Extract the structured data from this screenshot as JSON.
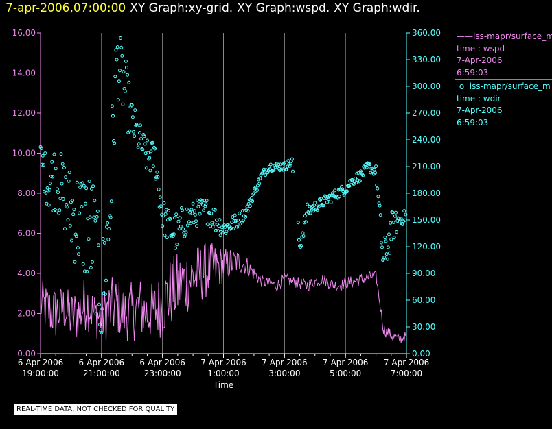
{
  "title": {
    "timestamp": "7-apr-2006,07:00:00",
    "parts": [
      "XY Graph:xy-grid.",
      "XY Graph:wspd.",
      "XY Graph:wdir."
    ]
  },
  "legend": {
    "wspd": {
      "name": "iss-mapr/surface_m",
      "var": "time : wspd",
      "date": "7-Apr-2006",
      "time": "6:59:03"
    },
    "wdir": {
      "name": "iss-mapr/surface_m",
      "var": "time : wdir",
      "date": "7-Apr-2006",
      "time": "6:59:03"
    }
  },
  "quality_note": "REAL-TIME DATA, NOT CHECKED FOR QUALITY",
  "colors": {
    "wspd": "#ee88ee",
    "wdir": "#55ffff",
    "grid": "#888888",
    "axis": "#ffffff"
  },
  "chart_data": {
    "type": "line+scatter",
    "xlabel": "Time",
    "x_unit": "hours since 6-Apr-2006 19:00:00",
    "xlim": [
      0,
      12.0
    ],
    "x_ticks": [
      {
        "x": 0,
        "date": "6-Apr-2006",
        "time": "19:00:00"
      },
      {
        "x": 2,
        "date": "6-Apr-2006",
        "time": "21:00:00"
      },
      {
        "x": 4,
        "date": "6-Apr-2006",
        "time": "23:00:00"
      },
      {
        "x": 6,
        "date": "7-Apr-2006",
        "time": "1:00:00"
      },
      {
        "x": 8,
        "date": "7-Apr-2006",
        "time": "3:00:00"
      },
      {
        "x": 10,
        "date": "7-Apr-2006",
        "time": "5:00:00"
      },
      {
        "x": 12,
        "date": "7-Apr-2006",
        "time": "7:00:00"
      }
    ],
    "y_left": {
      "ylim": [
        0,
        16
      ],
      "ticks": [
        "0.00",
        "2.00",
        "4.00",
        "6.00",
        "8.00",
        "10.00",
        "12.00",
        "14.00",
        "16.00"
      ]
    },
    "y_right": {
      "ylim": [
        0,
        360
      ],
      "ticks": [
        "0.00",
        "30.00",
        "60.00",
        "90.00",
        "120.00",
        "150.00",
        "180.00",
        "210.00",
        "240.00",
        "270.00",
        "300.00",
        "330.00",
        "360.00"
      ]
    },
    "series": [
      {
        "name": "wspd",
        "axis": "left",
        "style": "line",
        "x": [
          0,
          0.25,
          0.5,
          0.75,
          1.0,
          1.25,
          1.5,
          1.75,
          2.0,
          2.25,
          2.5,
          2.75,
          3.0,
          3.25,
          3.5,
          3.75,
          4.0,
          4.25,
          4.5,
          4.75,
          5.0,
          5.25,
          5.5,
          5.75,
          6.0,
          6.25,
          6.5,
          6.75,
          7.0,
          7.25,
          7.5,
          7.75,
          8.0,
          8.25,
          8.5,
          8.75,
          9.0,
          9.25,
          9.5,
          9.75,
          10.0,
          10.25,
          10.5,
          10.75,
          11.0,
          11.25,
          11.5,
          11.75,
          12.0
        ],
        "values": [
          2.5,
          2.2,
          2.0,
          2.3,
          1.8,
          2.0,
          2.6,
          2.0,
          1.8,
          2.2,
          2.4,
          2.0,
          2.1,
          2.3,
          2.0,
          2.2,
          2.5,
          3.0,
          3.3,
          3.6,
          3.8,
          4.0,
          4.2,
          4.3,
          4.4,
          4.5,
          4.6,
          4.4,
          4.0,
          3.6,
          3.5,
          3.4,
          3.7,
          3.6,
          3.5,
          3.4,
          3.6,
          3.7,
          3.5,
          3.4,
          3.5,
          3.6,
          3.7,
          3.8,
          3.9,
          1.2,
          0.9,
          0.7,
          0.9
        ],
        "amplitude": [
          1.2,
          1.3,
          1.4,
          1.2,
          1.3,
          1.5,
          1.4,
          1.2,
          1.3,
          1.6,
          1.5,
          1.4,
          1.5,
          1.6,
          1.4,
          1.5,
          1.7,
          1.8,
          1.8,
          1.7,
          1.6,
          1.5,
          1.4,
          1.2,
          0.9,
          0.8,
          0.6,
          0.5,
          0.4,
          0.3,
          0.3,
          0.3,
          0.3,
          0.3,
          0.3,
          0.3,
          0.3,
          0.3,
          0.3,
          0.3,
          0.3,
          0.3,
          0.3,
          0.3,
          0.2,
          0.3,
          0.3,
          0.3,
          0.2
        ]
      },
      {
        "name": "wdir",
        "axis": "right",
        "style": "scatter",
        "x": [
          0,
          0.25,
          0.5,
          0.75,
          1.0,
          1.25,
          1.5,
          1.75,
          2.0,
          2.25,
          2.5,
          2.75,
          3.0,
          3.25,
          3.5,
          3.75,
          4.0,
          4.25,
          4.5,
          4.75,
          5.0,
          5.25,
          5.5,
          5.75,
          6.0,
          6.25,
          6.5,
          6.75,
          7.0,
          7.25,
          7.5,
          7.75,
          8.0,
          8.25,
          8.5,
          8.75,
          9.0,
          9.25,
          9.5,
          9.75,
          10.0,
          10.25,
          10.5,
          10.75,
          11.0,
          11.25,
          11.5,
          11.75,
          12.0
        ],
        "values": [
          220,
          190,
          200,
          180,
          160,
          150,
          145,
          130,
          60,
          150,
          330,
          300,
          260,
          240,
          220,
          220,
          155,
          140,
          135,
          150,
          155,
          160,
          160,
          150,
          140,
          145,
          150,
          160,
          180,
          200,
          210,
          210,
          210,
          215,
          120,
          160,
          165,
          170,
          175,
          180,
          185,
          195,
          200,
          210,
          205,
          100,
          140,
          150,
          155
        ],
        "spread": [
          20,
          30,
          40,
          40,
          50,
          60,
          70,
          70,
          60,
          80,
          40,
          40,
          25,
          20,
          20,
          20,
          20,
          20,
          25,
          20,
          15,
          15,
          15,
          15,
          10,
          10,
          8,
          6,
          5,
          5,
          5,
          5,
          5,
          5,
          10,
          8,
          6,
          6,
          6,
          6,
          6,
          6,
          6,
          6,
          6,
          25,
          20,
          10,
          6
        ]
      }
    ]
  }
}
